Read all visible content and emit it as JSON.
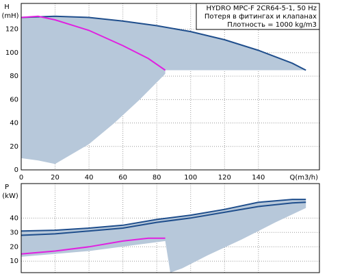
{
  "chart_data": [
    {
      "type": "line",
      "y_label_1": "H",
      "y_label_2": "(mH)",
      "x_label": "Q(m3/h)",
      "info": [
        "HYDRO MPC-F 2CR64-5-1, 50 Hz",
        "Потеря в фитингах и клапанах",
        "Плотность = 1000 kg/m3"
      ],
      "xlim": [
        0,
        176
      ],
      "xticks": [
        0,
        20,
        40,
        60,
        80,
        100,
        120,
        140
      ],
      "ylim": [
        0,
        142
      ],
      "yticks": [
        0,
        20,
        40,
        60,
        80,
        100,
        120
      ],
      "grid": true,
      "series": [
        {
          "style": "area",
          "color": "#b7c8da",
          "x": [
            0,
            20,
            40,
            60,
            80,
            100,
            120,
            140,
            160,
            168,
            85,
            85,
            70,
            55,
            40,
            20,
            10,
            0
          ],
          "values": [
            130,
            131,
            130,
            127,
            123,
            118,
            111,
            102,
            91,
            85,
            85,
            82,
            60,
            40,
            22,
            5,
            8,
            10
          ]
        },
        {
          "style": "line",
          "color": "#1f4e8c",
          "x": [
            0,
            20,
            40,
            60,
            80,
            100,
            120,
            140,
            160,
            168
          ],
          "values": [
            130,
            131,
            130,
            127,
            123,
            118,
            111,
            102,
            91,
            85
          ]
        },
        {
          "style": "line",
          "color": "#e020e0",
          "x": [
            0,
            10,
            20,
            40,
            60,
            75,
            85
          ],
          "values": [
            130,
            131,
            128,
            119,
            106,
            95,
            85
          ]
        }
      ]
    },
    {
      "type": "line",
      "y_label_1": "P",
      "y_label_2": "(kW)",
      "xlim": [
        0,
        176
      ],
      "xticks": [
        0,
        20,
        40,
        60,
        80,
        100,
        120,
        140
      ],
      "ylim": [
        2,
        64
      ],
      "yticks": [
        10,
        20,
        30,
        40
      ],
      "grid": true,
      "series": [
        {
          "style": "area",
          "color": "#b7c8da",
          "x": [
            0,
            20,
            40,
            60,
            80,
            100,
            120,
            140,
            160,
            168,
            168,
            150,
            130,
            110,
            95,
            88,
            85,
            40,
            0
          ],
          "values": [
            31,
            31.5,
            33,
            35,
            39,
            42,
            46,
            51,
            53,
            53,
            47,
            37,
            25,
            14,
            5,
            2,
            24,
            17,
            13
          ]
        },
        {
          "style": "line",
          "color": "#1f4e8c",
          "x": [
            0,
            20,
            40,
            60,
            80,
            100,
            120,
            140,
            160,
            168
          ],
          "values": [
            31,
            31.5,
            33,
            35,
            39,
            42,
            46,
            51,
            53,
            53
          ]
        },
        {
          "style": "line",
          "color": "#1f4e8c",
          "x": [
            0,
            20,
            40,
            60,
            80,
            100,
            120,
            140,
            160,
            168
          ],
          "values": [
            28,
            29,
            31,
            33,
            37,
            40,
            44,
            48,
            50.5,
            51
          ]
        },
        {
          "style": "line",
          "color": "#e020e0",
          "x": [
            0,
            20,
            40,
            60,
            75,
            85
          ],
          "values": [
            15,
            17,
            20,
            24,
            26,
            26
          ]
        }
      ]
    }
  ]
}
